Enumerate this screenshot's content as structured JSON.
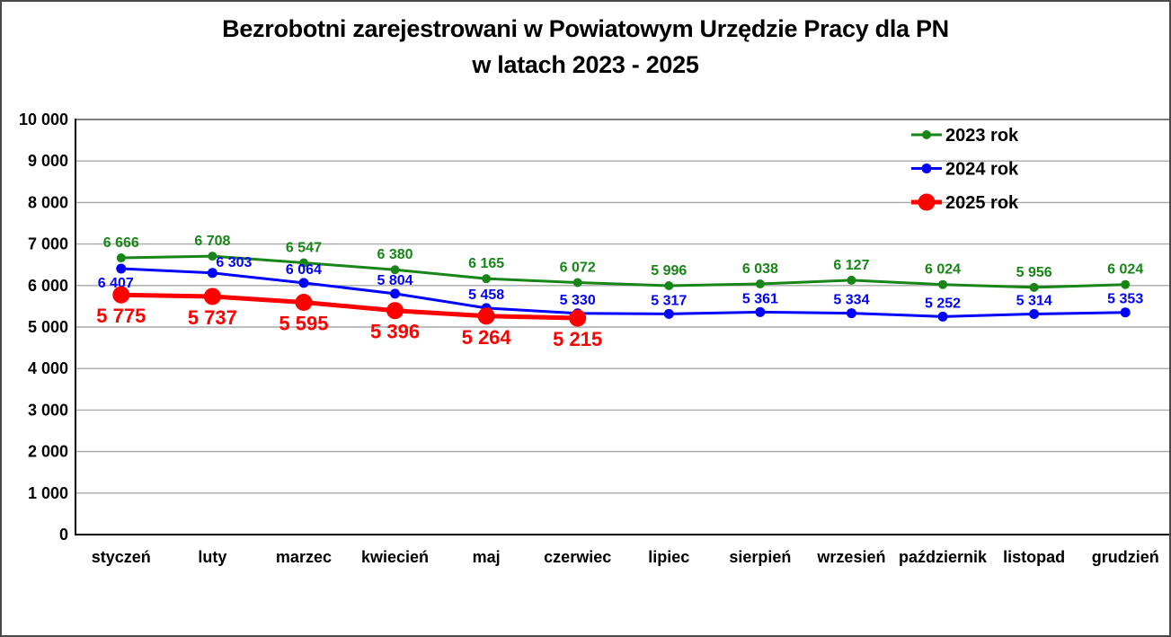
{
  "window": {
    "background": "#ffffff",
    "border_color": "#4a4a4a"
  },
  "chart_data": {
    "type": "line",
    "title_line1": "Bezrobotni zarejestrowani w Powiatowym Urzędzie Pracy dla PN",
    "title_line2": "w latach 2023 - 2025",
    "categories": [
      "styczeń",
      "luty",
      "marzec",
      "kwiecień",
      "maj",
      "czerwiec",
      "lipiec",
      "sierpień",
      "wrzesień",
      "październik",
      "listopad",
      "grudzień"
    ],
    "y_axis": {
      "min": 0,
      "max": 10000,
      "step": 1000,
      "tick_labels": [
        "0",
        "1 000",
        "2 000",
        "3 000",
        "4 000",
        "5 000",
        "6 000",
        "7 000",
        "8 000",
        "9 000",
        "10 000"
      ]
    },
    "grid": true,
    "gridline_color": "#a8a8a8",
    "top_gridline_color": "#7f7f7f",
    "axis_color": "#000000",
    "legend": {
      "position": "top-right-inside",
      "labels": [
        "2023 rok",
        "2024 rok",
        "2025 rok"
      ]
    },
    "series": [
      {
        "name": "2023 rok",
        "color": "#178517",
        "values": [
          6666,
          6708,
          6547,
          6380,
          6165,
          6072,
          5996,
          6038,
          6127,
          6024,
          5956,
          6024
        ],
        "line_width": 3,
        "marker_radius": 5,
        "label_font_size": 16,
        "label_offset": [
          0,
          -12
        ],
        "label_overrides": {}
      },
      {
        "name": "2024 rok",
        "color": "#0000ff",
        "values": [
          6407,
          6303,
          6064,
          5804,
          5458,
          5330,
          5317,
          5361,
          5334,
          5252,
          5314,
          5353
        ],
        "line_width": 3,
        "marker_radius": 5.5,
        "label_font_size": 16,
        "label_offset": [
          0,
          -10
        ],
        "label_overrides": {
          "0": [
            -6,
            21
          ],
          "1": [
            24,
            -7
          ]
        }
      },
      {
        "name": "2025 rok",
        "color": "#ff0000",
        "values": [
          5775,
          5737,
          5595,
          5396,
          5264,
          5215
        ],
        "line_width": 5,
        "marker_radius": 9.5,
        "label_font_size": 22,
        "label_offset": [
          0,
          31
        ],
        "label_overrides": {}
      }
    ]
  }
}
